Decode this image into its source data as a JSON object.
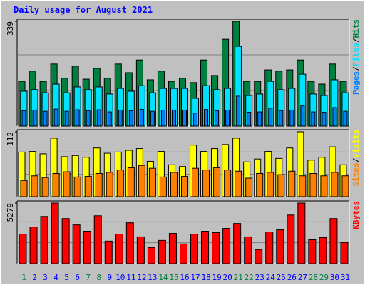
{
  "chart_data": [
    {
      "type": "bar",
      "title": "Daily usage for August 2021",
      "categories": [
        "1",
        "2",
        "3",
        "4",
        "5",
        "6",
        "7",
        "8",
        "9",
        "10",
        "11",
        "12",
        "13",
        "14",
        "15",
        "16",
        "17",
        "18",
        "19",
        "20",
        "21",
        "22",
        "23",
        "24",
        "25",
        "26",
        "27",
        "28",
        "29",
        "30",
        "31"
      ],
      "category_colors": [
        "#008040",
        "#0000ff",
        "#0000ff",
        "#0000ff",
        "#0000ff",
        "#0000ff",
        "#008040",
        "#008040",
        "#0000ff",
        "#0000ff",
        "#0000ff",
        "#0000ff",
        "#0000ff",
        "#008040",
        "#008040",
        "#0000ff",
        "#0000ff",
        "#0000ff",
        "#0000ff",
        "#0000ff",
        "#008040",
        "#008040",
        "#0000ff",
        "#0000ff",
        "#0000ff",
        "#0000ff",
        "#0000ff",
        "#008040",
        "#008040",
        "#0000ff",
        "#0000ff"
      ],
      "legend_separator": "/",
      "ylim": [
        0,
        339
      ],
      "yticks": [
        339
      ],
      "series": [
        {
          "name": "Hits",
          "color": "#008040",
          "values": [
            145,
            178,
            145,
            201,
            155,
            194,
            152,
            187,
            155,
            201,
            173,
            214,
            150,
            178,
            145,
            155,
            141,
            214,
            164,
            281,
            339,
            145,
            145,
            182,
            178,
            182,
            214,
            145,
            136,
            201,
            145
          ]
        },
        {
          "name": "Files",
          "color": "#00e0ff",
          "values": [
            113,
            118,
            108,
            136,
            108,
            127,
            118,
            127,
            104,
            122,
            113,
            131,
            108,
            122,
            122,
            122,
            90,
            131,
            118,
            122,
            258,
            99,
            104,
            145,
            118,
            122,
            168,
            104,
            99,
            150,
            108
          ]
        },
        {
          "name": "Pages",
          "color": "#0080ff",
          "values": [
            50,
            52,
            48,
            55,
            48,
            53,
            50,
            53,
            46,
            52,
            50,
            54,
            48,
            52,
            52,
            52,
            42,
            54,
            50,
            52,
            97,
            45,
            46,
            58,
            50,
            52,
            66,
            46,
            45,
            60,
            48
          ]
        }
      ]
    },
    {
      "type": "bar",
      "ylim": [
        0,
        112
      ],
      "yticks": [
        112
      ],
      "series": [
        {
          "name": "Visits",
          "color": "#ffff00",
          "values": [
            77,
            78,
            74,
            101,
            69,
            71,
            68,
            84,
            75,
            77,
            80,
            83,
            61,
            78,
            55,
            52,
            89,
            78,
            83,
            90,
            101,
            60,
            65,
            78,
            66,
            84,
            112,
            63,
            68,
            86,
            55
          ]
        },
        {
          "name": "Sites",
          "color": "#ff8000",
          "values": [
            28,
            36,
            33,
            40,
            43,
            34,
            35,
            40,
            42,
            46,
            50,
            54,
            49,
            34,
            42,
            35,
            49,
            46,
            50,
            46,
            44,
            32,
            40,
            42,
            38,
            44,
            36,
            40,
            36,
            42,
            36
          ]
        }
      ]
    },
    {
      "type": "bar",
      "ylim": [
        0,
        5279
      ],
      "yticks": [
        5279
      ],
      "series": [
        {
          "name": "KBytes",
          "color": "#ff0000",
          "values": [
            2578,
            3192,
            4113,
            5279,
            3929,
            3376,
            2824,
            4174,
            1964,
            2578,
            3560,
            2333,
            1412,
            2026,
            2640,
            1719,
            2578,
            2824,
            2701,
            3069,
            3499,
            2333,
            1228,
            2762,
            2946,
            4235,
            5279,
            2087,
            2271,
            3929,
            1842
          ]
        }
      ]
    }
  ]
}
